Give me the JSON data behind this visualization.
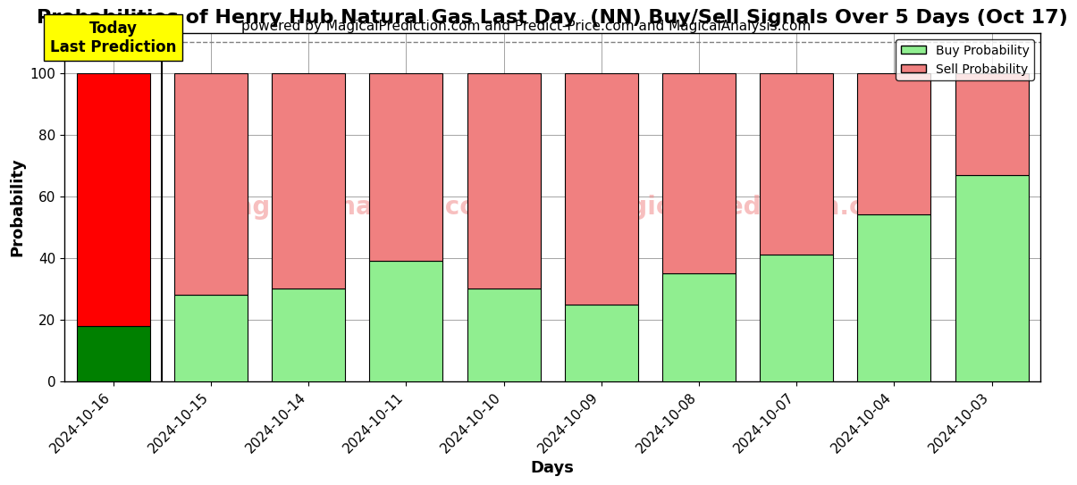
{
  "title": "Probabilities of Henry Hub Natural Gas Last Day  (NN) Buy/Sell Signals Over 5 Days (Oct 17)",
  "subtitle": "powered by MagicalPrediction.com and Predict-Price.com and MagicalAnalysis.com",
  "xlabel": "Days",
  "ylabel": "Probability",
  "categories": [
    "2024-10-16",
    "2024-10-15",
    "2024-10-14",
    "2024-10-11",
    "2024-10-10",
    "2024-10-09",
    "2024-10-08",
    "2024-10-07",
    "2024-10-04",
    "2024-10-03"
  ],
  "buy_values": [
    18,
    28,
    30,
    39,
    30,
    25,
    35,
    41,
    54,
    67
  ],
  "sell_values": [
    82,
    72,
    70,
    61,
    70,
    75,
    65,
    59,
    46,
    33
  ],
  "today_buy_color": "#008000",
  "today_sell_color": "#FF0000",
  "other_buy_color": "#90EE90",
  "other_sell_color": "#F08080",
  "today_label_bg": "#FFFF00",
  "today_label_text": "Today\nLast Prediction",
  "legend_buy": "Buy Probability",
  "legend_sell": "Sell Probability",
  "ylim": [
    0,
    113
  ],
  "dashed_line_y": 110,
  "watermark_line1": "MagicalAnalysis.com",
  "watermark_line2": "MagicalPrediction.com",
  "title_fontsize": 16,
  "subtitle_fontsize": 11,
  "axis_label_fontsize": 13,
  "tick_fontsize": 11
}
